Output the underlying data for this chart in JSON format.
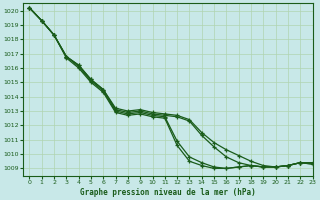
{
  "title": "Graphe pression niveau de la mer (hPa)",
  "background_color": "#c8e8e8",
  "grid_color": "#b0d4b0",
  "line_color": "#1a5c1a",
  "xlim": [
    -0.5,
    23
  ],
  "ylim": [
    1008.5,
    1020.5
  ],
  "yticks": [
    1009,
    1010,
    1011,
    1012,
    1013,
    1014,
    1015,
    1016,
    1017,
    1018,
    1019,
    1020
  ],
  "xticks": [
    0,
    1,
    2,
    3,
    4,
    5,
    6,
    7,
    8,
    9,
    10,
    11,
    12,
    13,
    14,
    15,
    16,
    17,
    18,
    19,
    20,
    21,
    22,
    23
  ],
  "series": [
    [
      1020.2,
      1019.3,
      1018.3,
      1016.8,
      1016.2,
      1015.2,
      1014.5,
      1013.2,
      1013.0,
      1013.1,
      1012.9,
      1012.8,
      1012.7,
      1012.4,
      1011.5,
      1010.8,
      1010.3,
      1009.9,
      1009.5,
      1009.2,
      1009.1,
      1009.2,
      1009.4,
      1009.4
    ],
    [
      1020.2,
      1019.3,
      1018.3,
      1016.8,
      1016.2,
      1015.2,
      1014.5,
      1013.1,
      1012.9,
      1013.0,
      1012.8,
      1012.7,
      1012.6,
      1012.3,
      1011.3,
      1010.5,
      1009.8,
      1009.4,
      1009.2,
      1009.1,
      1009.1,
      1009.2,
      1009.4,
      1009.4
    ],
    [
      1020.2,
      1019.3,
      1018.3,
      1016.8,
      1016.1,
      1015.1,
      1014.4,
      1013.0,
      1012.8,
      1012.9,
      1012.7,
      1012.6,
      1010.9,
      1009.8,
      1009.4,
      1009.1,
      1009.0,
      1009.1,
      1009.2,
      1009.1,
      1009.1,
      1009.2,
      1009.4,
      1009.3
    ],
    [
      1020.2,
      1019.3,
      1018.3,
      1016.7,
      1016.0,
      1015.0,
      1014.3,
      1012.9,
      1012.7,
      1012.8,
      1012.6,
      1012.5,
      1010.6,
      1009.5,
      1009.2,
      1009.0,
      1009.0,
      1009.1,
      1009.2,
      1009.1,
      1009.1,
      1009.2,
      1009.4,
      1009.3
    ]
  ]
}
